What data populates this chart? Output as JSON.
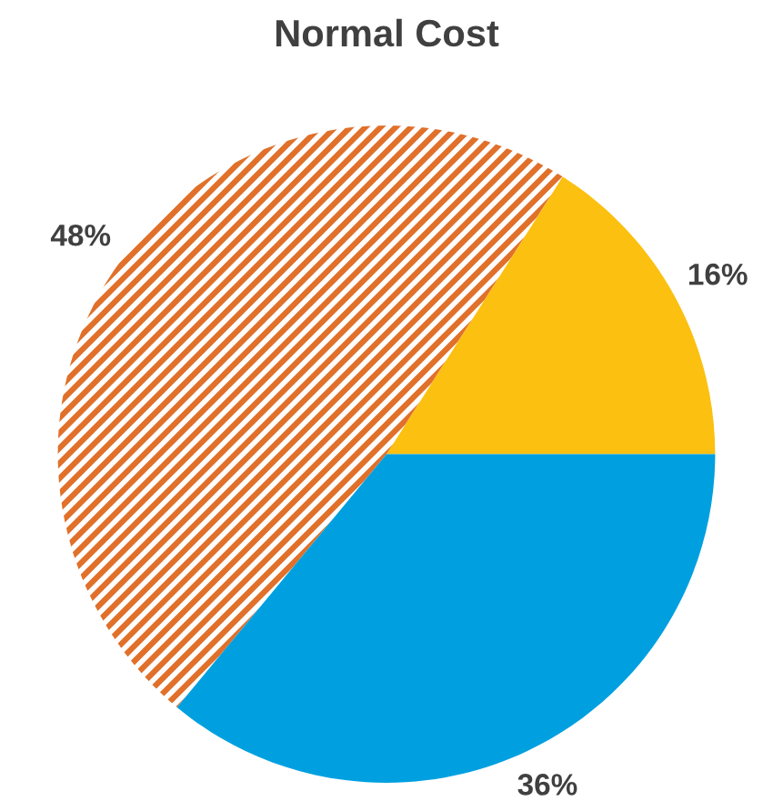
{
  "chart_data": {
    "type": "pie",
    "title": "Normal Cost",
    "categories": [
      null,
      null,
      null
    ],
    "values": [
      16,
      48,
      36
    ],
    "colors": [
      "#fcc010",
      "#e0702a",
      "#00a0e0"
    ],
    "value_labels": [
      "16%",
      "48%",
      "36%"
    ]
  }
}
